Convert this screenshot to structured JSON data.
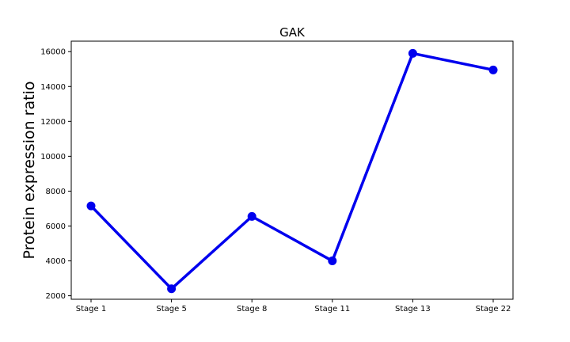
{
  "chart_data": {
    "type": "line",
    "title": "GAK",
    "xlabel": "",
    "ylabel": "Protein expression ratio",
    "categories": [
      "Stage 1",
      "Stage 5",
      "Stage 8",
      "Stage 11",
      "Stage 13",
      "Stage 22"
    ],
    "series": [
      {
        "values": [
          7150,
          2400,
          6550,
          4000,
          15900,
          14950
        ]
      }
    ],
    "ylim": [
      1800,
      16600
    ],
    "yticks": [
      2000,
      4000,
      6000,
      8000,
      10000,
      12000,
      14000,
      16000
    ],
    "grid": false,
    "colors": {
      "line": "#0000ee",
      "marker": "#0000ee",
      "axes": "#000000"
    }
  }
}
